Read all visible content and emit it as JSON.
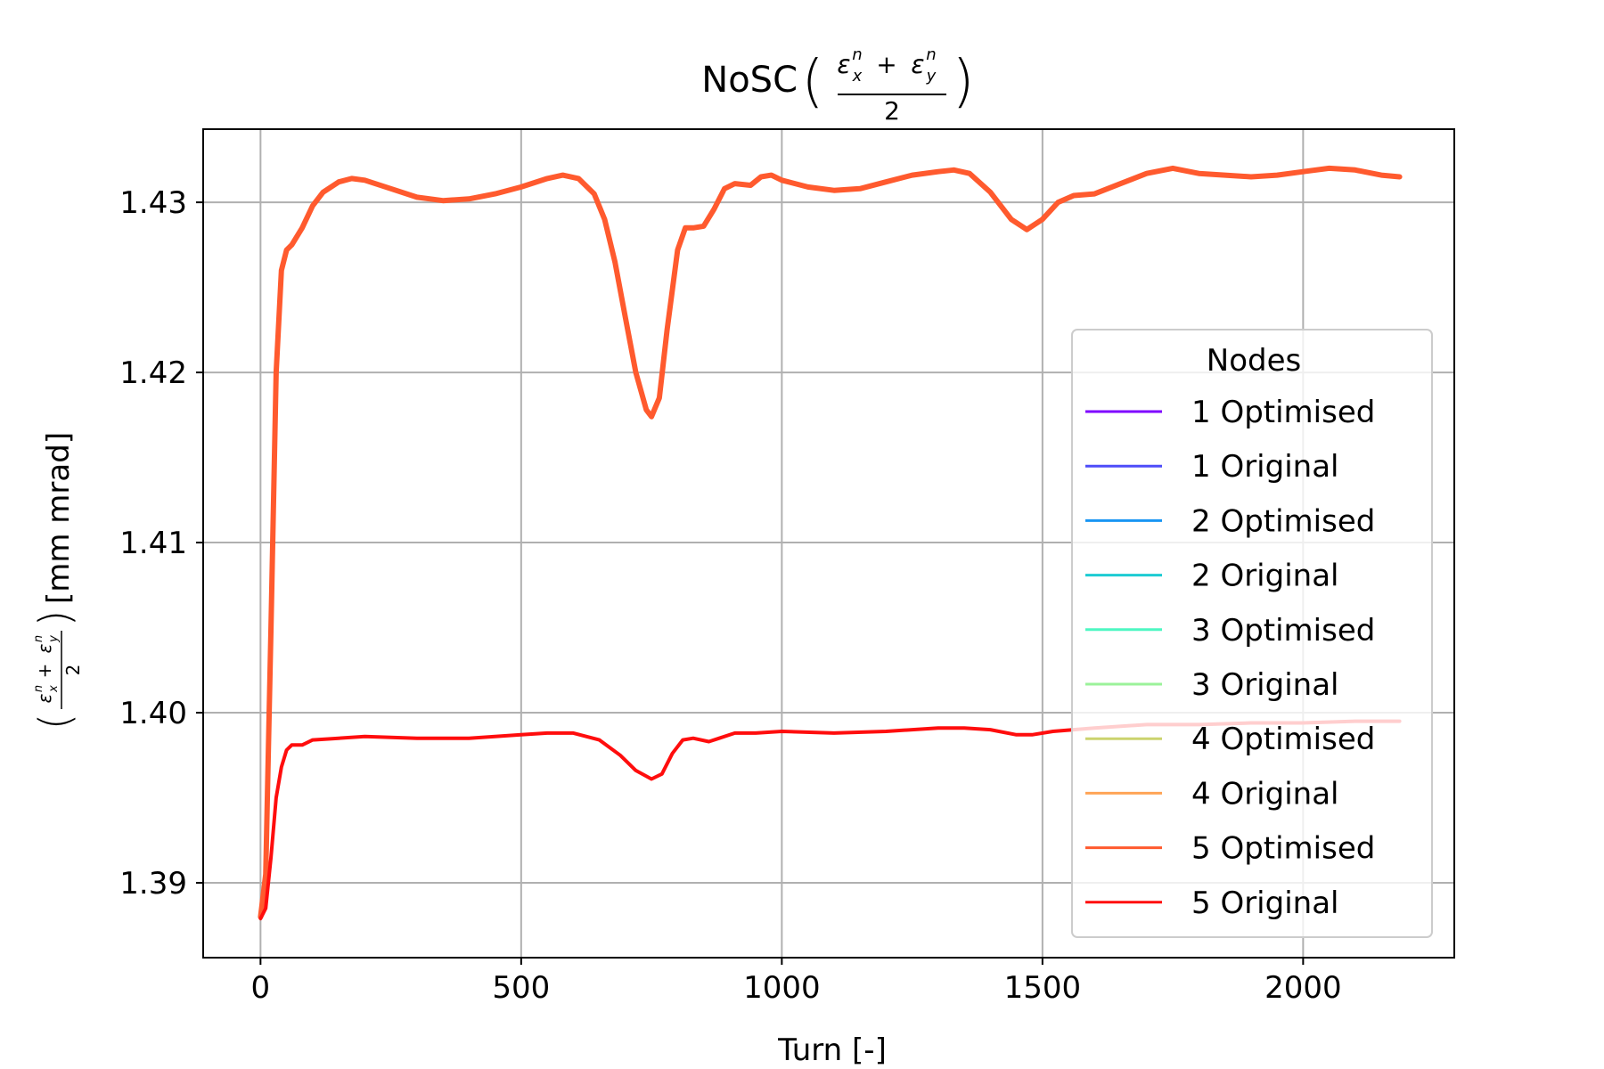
{
  "chart_data": {
    "type": "line",
    "title_prefix": "NoSC",
    "title_math": {
      "numerator_left": "ε",
      "numerator_left_sub": "x",
      "numerator_left_sup": "n",
      "plus": "+",
      "numerator_right": "ε",
      "numerator_right_sub": "y",
      "numerator_right_sup": "n",
      "denominator": "2"
    },
    "xlabel": "Turn [-]",
    "ylabel_unit": "[mm mrad]",
    "xlim": [
      -110,
      2290
    ],
    "ylim": [
      1.3856,
      1.4343
    ],
    "xticks": [
      0,
      500,
      1000,
      1500,
      2000
    ],
    "xtick_labels": [
      "0",
      "500",
      "1000",
      "1500",
      "2000"
    ],
    "yticks": [
      1.39,
      1.4,
      1.41,
      1.42,
      1.43
    ],
    "ytick_labels": [
      "1.39",
      "1.40",
      "1.41",
      "1.42",
      "1.43"
    ],
    "grid": true,
    "legend": {
      "title": "Nodes",
      "placement": "right"
    },
    "series": [
      {
        "name": "1 Optimised",
        "color": "#7f00ff",
        "points": []
      },
      {
        "name": "1 Original",
        "color": "#4e4df9",
        "points": []
      },
      {
        "name": "2 Optimised",
        "color": "#1996f3",
        "points": []
      },
      {
        "name": "2 Original",
        "color": "#1ccbd3",
        "points": []
      },
      {
        "name": "3 Optimised",
        "color": "#4df7c2",
        "points": []
      },
      {
        "name": "3 Original",
        "color": "#9bf29a",
        "points": []
      },
      {
        "name": "4 Optimised",
        "color": "#cbd36e",
        "points": []
      },
      {
        "name": "4 Original",
        "color": "#ffa456",
        "points": []
      },
      {
        "name": "5 Optimised",
        "color": "#ff5a2e",
        "width": 6,
        "points": [
          [
            0,
            1.388
          ],
          [
            10,
            1.3905
          ],
          [
            20,
            1.405
          ],
          [
            30,
            1.42
          ],
          [
            40,
            1.426
          ],
          [
            50,
            1.4272
          ],
          [
            60,
            1.4275
          ],
          [
            80,
            1.4285
          ],
          [
            100,
            1.4298
          ],
          [
            120,
            1.4306
          ],
          [
            150,
            1.4312
          ],
          [
            175,
            1.4314
          ],
          [
            200,
            1.4313
          ],
          [
            250,
            1.4308
          ],
          [
            300,
            1.4303
          ],
          [
            350,
            1.4301
          ],
          [
            400,
            1.4302
          ],
          [
            450,
            1.4305
          ],
          [
            500,
            1.4309
          ],
          [
            550,
            1.4314
          ],
          [
            580,
            1.4316
          ],
          [
            610,
            1.4314
          ],
          [
            640,
            1.4305
          ],
          [
            660,
            1.429
          ],
          [
            680,
            1.4265
          ],
          [
            700,
            1.4232
          ],
          [
            720,
            1.42
          ],
          [
            740,
            1.4178
          ],
          [
            750,
            1.4174
          ],
          [
            765,
            1.4185
          ],
          [
            780,
            1.4225
          ],
          [
            800,
            1.4272
          ],
          [
            815,
            1.4285
          ],
          [
            830,
            1.4285
          ],
          [
            850,
            1.4286
          ],
          [
            870,
            1.4296
          ],
          [
            890,
            1.4308
          ],
          [
            910,
            1.4311
          ],
          [
            940,
            1.431
          ],
          [
            960,
            1.4315
          ],
          [
            980,
            1.4316
          ],
          [
            1000,
            1.4313
          ],
          [
            1050,
            1.4309
          ],
          [
            1100,
            1.4307
          ],
          [
            1150,
            1.4308
          ],
          [
            1200,
            1.4312
          ],
          [
            1250,
            1.4316
          ],
          [
            1300,
            1.4318
          ],
          [
            1330,
            1.4319
          ],
          [
            1360,
            1.4317
          ],
          [
            1400,
            1.4306
          ],
          [
            1440,
            1.429
          ],
          [
            1470,
            1.4284
          ],
          [
            1500,
            1.429
          ],
          [
            1530,
            1.43
          ],
          [
            1560,
            1.4304
          ],
          [
            1600,
            1.4305
          ],
          [
            1650,
            1.4311
          ],
          [
            1700,
            1.4317
          ],
          [
            1750,
            1.432
          ],
          [
            1800,
            1.4317
          ],
          [
            1850,
            1.4316
          ],
          [
            1900,
            1.4315
          ],
          [
            1950,
            1.4316
          ],
          [
            2000,
            1.4318
          ],
          [
            2050,
            1.432
          ],
          [
            2100,
            1.4319
          ],
          [
            2150,
            1.4316
          ],
          [
            2185,
            1.4315
          ]
        ]
      },
      {
        "name": "5 Original",
        "color": "#ff0d0d",
        "width": 4,
        "points": [
          [
            0,
            1.3879
          ],
          [
            10,
            1.3885
          ],
          [
            20,
            1.3915
          ],
          [
            30,
            1.395
          ],
          [
            40,
            1.3968
          ],
          [
            50,
            1.3978
          ],
          [
            60,
            1.3981
          ],
          [
            80,
            1.3981
          ],
          [
            100,
            1.3984
          ],
          [
            150,
            1.3985
          ],
          [
            200,
            1.3986
          ],
          [
            300,
            1.3985
          ],
          [
            400,
            1.3985
          ],
          [
            500,
            1.3987
          ],
          [
            550,
            1.3988
          ],
          [
            600,
            1.3988
          ],
          [
            650,
            1.3984
          ],
          [
            690,
            1.3975
          ],
          [
            720,
            1.3966
          ],
          [
            750,
            1.3961
          ],
          [
            770,
            1.3964
          ],
          [
            790,
            1.3976
          ],
          [
            810,
            1.3984
          ],
          [
            830,
            1.3985
          ],
          [
            860,
            1.3983
          ],
          [
            880,
            1.3985
          ],
          [
            910,
            1.3988
          ],
          [
            950,
            1.3988
          ],
          [
            1000,
            1.3989
          ],
          [
            1100,
            1.3988
          ],
          [
            1200,
            1.3989
          ],
          [
            1300,
            1.3991
          ],
          [
            1350,
            1.3991
          ],
          [
            1400,
            1.399
          ],
          [
            1450,
            1.3987
          ],
          [
            1480,
            1.3987
          ],
          [
            1520,
            1.3989
          ],
          [
            1560,
            1.399
          ],
          [
            1600,
            1.3991
          ],
          [
            1700,
            1.3993
          ],
          [
            1800,
            1.3993
          ],
          [
            1900,
            1.3994
          ],
          [
            2000,
            1.3994
          ],
          [
            2100,
            1.3995
          ],
          [
            2185,
            1.3995
          ]
        ]
      }
    ]
  }
}
